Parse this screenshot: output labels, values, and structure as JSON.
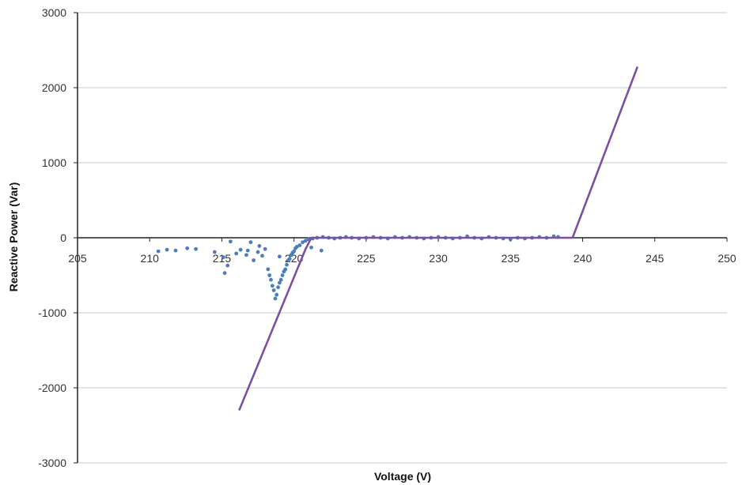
{
  "chart_data": {
    "type": "scatter",
    "title": "",
    "xlabel": "Voltage (V)",
    "ylabel": "Reactive Power (Var)",
    "xlim": [
      205,
      250
    ],
    "ylim": [
      -3000,
      3000
    ],
    "x_ticks": [
      205,
      210,
      215,
      220,
      225,
      230,
      235,
      240,
      245,
      250
    ],
    "y_ticks": [
      -3000,
      -2000,
      -1000,
      0,
      1000,
      2000,
      3000
    ],
    "x_tick_labels": [
      "205",
      "210",
      "215",
      "220",
      "225",
      "230",
      "235",
      "240",
      "245",
      "250"
    ],
    "y_tick_labels": [
      "-3000",
      "-2000",
      "-1000",
      "0",
      "1000",
      "2000",
      "3000"
    ],
    "grid": "horizontal",
    "legend": "none",
    "series": [
      {
        "kind": "scatter",
        "color": "#4a7ebf",
        "points": [
          [
            210.6,
            -180
          ],
          [
            211.2,
            -160
          ],
          [
            211.8,
            -170
          ],
          [
            212.6,
            -140
          ],
          [
            213.2,
            -150
          ],
          [
            214.5,
            -190
          ],
          [
            215.1,
            -260
          ],
          [
            215.2,
            -470
          ],
          [
            215.4,
            -370
          ],
          [
            215.6,
            -50
          ],
          [
            216.0,
            -210
          ],
          [
            216.3,
            -160
          ],
          [
            216.7,
            -230
          ],
          [
            217.0,
            -60
          ],
          [
            217.2,
            -300
          ],
          [
            217.5,
            -190
          ],
          [
            217.8,
            -240
          ],
          [
            218.0,
            -150
          ],
          [
            218.2,
            -420
          ],
          [
            218.3,
            -500
          ],
          [
            218.4,
            -560
          ],
          [
            218.5,
            -640
          ],
          [
            218.6,
            -700
          ],
          [
            218.7,
            -810
          ],
          [
            218.8,
            -760
          ],
          [
            218.9,
            -660
          ],
          [
            219.0,
            -600
          ],
          [
            219.1,
            -560
          ],
          [
            219.2,
            -500
          ],
          [
            219.3,
            -450
          ],
          [
            219.4,
            -420
          ],
          [
            219.5,
            -360
          ],
          [
            219.6,
            -300
          ],
          [
            219.7,
            -280
          ],
          [
            219.8,
            -230
          ],
          [
            219.9,
            -200
          ],
          [
            220.0,
            -180
          ],
          [
            220.1,
            -140
          ],
          [
            220.2,
            -120
          ],
          [
            220.4,
            -100
          ],
          [
            220.6,
            -60
          ],
          [
            220.8,
            -40
          ],
          [
            221.0,
            -20
          ],
          [
            221.3,
            -10
          ],
          [
            221.6,
            0
          ],
          [
            222.0,
            10
          ],
          [
            222.4,
            0
          ],
          [
            222.8,
            -10
          ],
          [
            223.2,
            0
          ],
          [
            223.6,
            10
          ],
          [
            224.0,
            0
          ],
          [
            224.5,
            -10
          ],
          [
            225.0,
            0
          ],
          [
            225.5,
            10
          ],
          [
            226.0,
            0
          ],
          [
            226.5,
            -10
          ],
          [
            227.0,
            10
          ],
          [
            227.5,
            0
          ],
          [
            228.0,
            10
          ],
          [
            228.5,
            0
          ],
          [
            229.0,
            -10
          ],
          [
            229.5,
            0
          ],
          [
            230.0,
            10
          ],
          [
            230.5,
            0
          ],
          [
            231.0,
            -10
          ],
          [
            231.5,
            0
          ],
          [
            232.0,
            20
          ],
          [
            232.5,
            0
          ],
          [
            233.0,
            -10
          ],
          [
            233.5,
            10
          ],
          [
            234.0,
            0
          ],
          [
            234.5,
            -10
          ],
          [
            235.0,
            -20
          ],
          [
            235.5,
            0
          ],
          [
            236.0,
            -10
          ],
          [
            236.5,
            0
          ],
          [
            237.0,
            10
          ],
          [
            237.5,
            0
          ],
          [
            238.0,
            20
          ],
          [
            238.3,
            10
          ],
          [
            221.9,
            -170
          ],
          [
            221.2,
            -130
          ],
          [
            216.8,
            -170
          ],
          [
            217.6,
            -110
          ],
          [
            219.0,
            -250
          ]
        ]
      },
      {
        "kind": "line",
        "color": "#7b4fa6",
        "points": [
          [
            216.2,
            -2300
          ],
          [
            220.8,
            -150
          ],
          [
            221.2,
            0
          ],
          [
            239.0,
            0
          ],
          [
            239.3,
            0
          ],
          [
            243.8,
            2280
          ]
        ]
      }
    ]
  }
}
